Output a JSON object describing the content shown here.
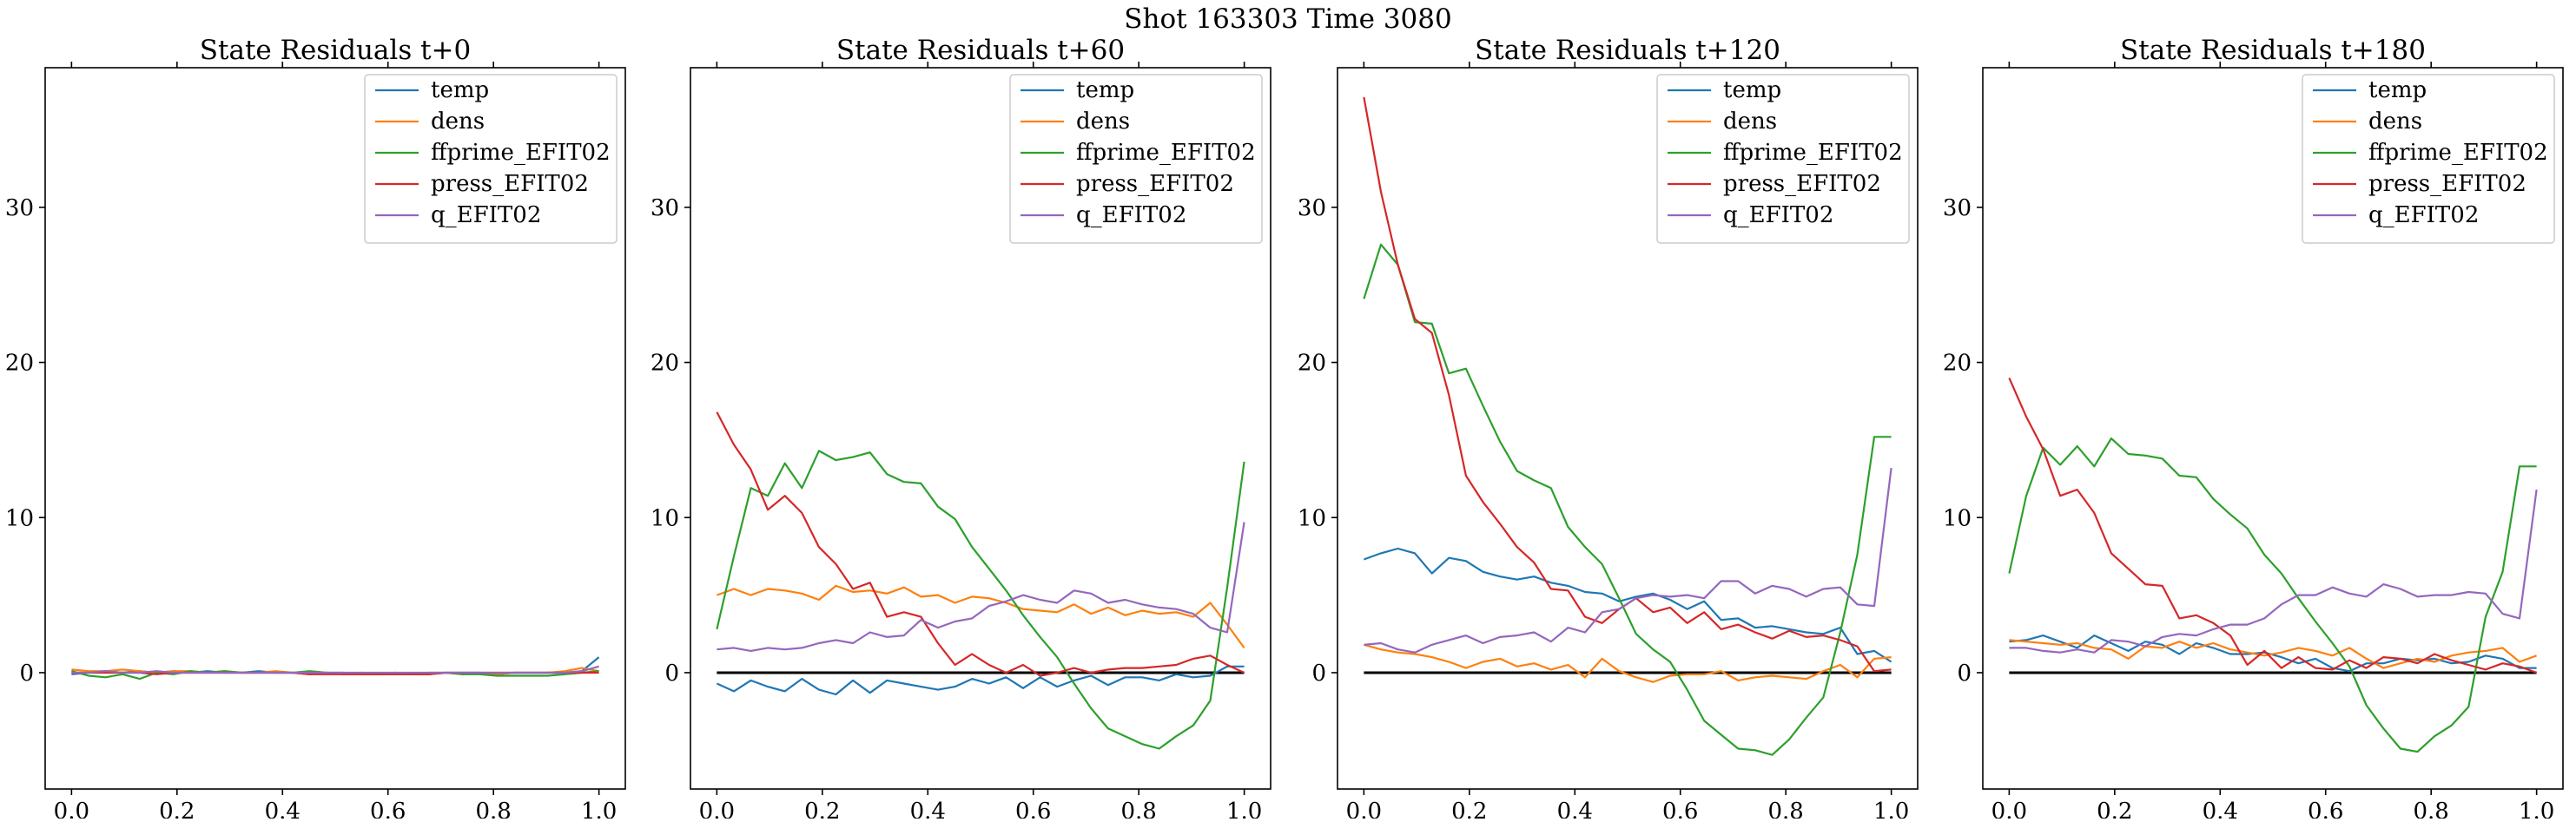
{
  "figure": {
    "suptitle": "Shot 163303   Time 3080"
  },
  "chart_data": [
    {
      "type": "line",
      "title": "State Residuals t+0",
      "xlim": [
        -0.05,
        1.05
      ],
      "ylim": [
        -7.5,
        39
      ],
      "xticks": [
        "0.0",
        "0.2",
        "0.4",
        "0.6",
        "0.8",
        "1.0"
      ],
      "yticks": [
        "0",
        "10",
        "20",
        "30"
      ],
      "show_zero_line": false,
      "legend": [
        "temp",
        "dens",
        "ffprime_EFIT02",
        "press_EFIT02",
        "q_EFIT02"
      ],
      "series": [
        {
          "name": "temp",
          "color": "#1f77b4",
          "values": [
            -0.1,
            0.0,
            0.1,
            0.0,
            0.1,
            0.0,
            0.1,
            0.0,
            0.1,
            0.0,
            0.0,
            0.1,
            0.0,
            0.0,
            -0.1,
            0.0,
            0.0,
            -0.1,
            -0.1,
            0.0,
            -0.1,
            -0.1,
            0.0,
            0.0,
            0.0,
            -0.1,
            0.0,
            0.0,
            0.0,
            0.0,
            0.1,
            1.0
          ]
        },
        {
          "name": "dens",
          "color": "#ff7f0e",
          "values": [
            0.2,
            0.1,
            0.1,
            0.2,
            0.1,
            0.0,
            0.1,
            0.1,
            0.0,
            0.1,
            0.0,
            0.0,
            0.1,
            0.0,
            -0.1,
            0.0,
            -0.1,
            -0.1,
            -0.1,
            0.0,
            -0.1,
            -0.1,
            0.0,
            -0.1,
            0.0,
            -0.1,
            0.0,
            0.0,
            0.0,
            0.1,
            0.3,
            0.1
          ]
        },
        {
          "name": "ffprime_EFIT02",
          "color": "#2ca02c",
          "values": [
            0.1,
            -0.2,
            -0.3,
            -0.1,
            -0.4,
            0.0,
            -0.1,
            0.1,
            0.0,
            0.1,
            0.0,
            0.0,
            0.0,
            0.0,
            0.1,
            0.0,
            -0.1,
            0.0,
            -0.1,
            -0.1,
            -0.1,
            0.0,
            0.0,
            -0.1,
            -0.1,
            -0.2,
            -0.2,
            -0.2,
            -0.2,
            -0.1,
            0.0,
            0.1
          ]
        },
        {
          "name": "press_EFIT02",
          "color": "#d62728",
          "values": [
            0.0,
            0.0,
            0.0,
            0.0,
            0.0,
            -0.1,
            0.0,
            0.0,
            0.0,
            0.0,
            0.0,
            0.0,
            0.0,
            0.0,
            -0.1,
            -0.1,
            -0.1,
            -0.1,
            -0.1,
            -0.1,
            -0.1,
            -0.1,
            0.0,
            0.0,
            0.0,
            0.0,
            0.0,
            0.0,
            0.0,
            0.0,
            0.0,
            0.0
          ]
        },
        {
          "name": "q_EFIT02",
          "color": "#9467bd",
          "values": [
            0.0,
            0.0,
            0.1,
            0.0,
            0.0,
            0.1,
            0.0,
            0.0,
            0.0,
            0.0,
            0.0,
            0.0,
            0.0,
            0.0,
            0.0,
            0.0,
            0.0,
            0.0,
            0.0,
            0.0,
            0.0,
            0.0,
            0.0,
            0.0,
            0.0,
            0.0,
            0.0,
            0.0,
            0.0,
            0.0,
            0.1,
            0.4
          ]
        }
      ]
    },
    {
      "type": "line",
      "title": "State Residuals t+60",
      "xlim": [
        -0.05,
        1.05
      ],
      "ylim": [
        -7.5,
        39
      ],
      "xticks": [
        "0.0",
        "0.2",
        "0.4",
        "0.6",
        "0.8",
        "1.0"
      ],
      "yticks": [
        "0",
        "10",
        "20",
        "30"
      ],
      "show_zero_line": true,
      "legend": [
        "temp",
        "dens",
        "ffprime_EFIT02",
        "press_EFIT02",
        "q_EFIT02"
      ],
      "series": [
        {
          "name": "temp",
          "color": "#1f77b4",
          "values": [
            -0.7,
            -1.2,
            -0.5,
            -0.9,
            -1.2,
            -0.4,
            -1.1,
            -1.4,
            -0.5,
            -1.3,
            -0.5,
            -0.7,
            -0.9,
            -1.1,
            -0.9,
            -0.4,
            -0.7,
            -0.3,
            -1.0,
            -0.3,
            -0.9,
            -0.5,
            -0.2,
            -0.8,
            -0.3,
            -0.3,
            -0.5,
            -0.1,
            -0.3,
            -0.2,
            0.4,
            0.4
          ]
        },
        {
          "name": "dens",
          "color": "#ff7f0e",
          "values": [
            5.0,
            5.4,
            5.0,
            5.4,
            5.3,
            5.1,
            4.7,
            5.6,
            5.2,
            5.3,
            5.1,
            5.5,
            4.9,
            5.0,
            4.5,
            4.9,
            4.8,
            4.5,
            4.1,
            4.0,
            3.9,
            4.4,
            3.8,
            4.2,
            3.7,
            4.0,
            3.8,
            3.9,
            3.6,
            4.5,
            3.1,
            1.6
          ]
        },
        {
          "name": "ffprime_EFIT02",
          "color": "#2ca02c",
          "values": [
            2.8,
            7.5,
            11.9,
            11.4,
            13.5,
            11.9,
            14.3,
            13.7,
            13.9,
            14.2,
            12.8,
            12.3,
            12.2,
            10.7,
            9.9,
            8.1,
            6.7,
            5.3,
            3.7,
            2.3,
            1.0,
            -0.7,
            -2.3,
            -3.6,
            -4.1,
            -4.6,
            -4.9,
            -4.1,
            -3.4,
            -1.8,
            5.5,
            13.6
          ]
        },
        {
          "name": "press_EFIT02",
          "color": "#d62728",
          "values": [
            16.8,
            14.7,
            13.1,
            10.5,
            11.4,
            10.3,
            8.1,
            7.0,
            5.4,
            5.8,
            3.6,
            3.9,
            3.6,
            1.9,
            0.5,
            1.2,
            0.5,
            0.0,
            0.5,
            -0.2,
            0.0,
            0.3,
            0.0,
            0.2,
            0.3,
            0.3,
            0.4,
            0.5,
            0.9,
            1.1,
            0.5,
            0.0
          ]
        },
        {
          "name": "q_EFIT02",
          "color": "#9467bd",
          "values": [
            1.5,
            1.6,
            1.4,
            1.6,
            1.5,
            1.6,
            1.9,
            2.1,
            1.9,
            2.6,
            2.3,
            2.4,
            3.4,
            2.9,
            3.3,
            3.5,
            4.3,
            4.6,
            5.0,
            4.7,
            4.5,
            5.3,
            5.1,
            4.5,
            4.7,
            4.4,
            4.2,
            4.1,
            3.8,
            2.9,
            2.6,
            9.7
          ]
        }
      ]
    },
    {
      "type": "line",
      "title": "State Residuals t+120",
      "xlim": [
        -0.05,
        1.05
      ],
      "ylim": [
        -7.5,
        39
      ],
      "xticks": [
        "0.0",
        "0.2",
        "0.4",
        "0.6",
        "0.8",
        "1.0"
      ],
      "yticks": [
        "0",
        "10",
        "20",
        "30"
      ],
      "show_zero_line": true,
      "legend": [
        "temp",
        "dens",
        "ffprime_EFIT02",
        "press_EFIT02",
        "q_EFIT02"
      ],
      "series": [
        {
          "name": "temp",
          "color": "#1f77b4",
          "values": [
            7.3,
            7.7,
            8.0,
            7.7,
            6.4,
            7.4,
            7.2,
            6.5,
            6.2,
            6.0,
            6.2,
            5.8,
            5.6,
            5.2,
            5.1,
            4.6,
            4.9,
            5.1,
            4.7,
            4.1,
            4.6,
            3.4,
            3.5,
            2.9,
            3.0,
            2.8,
            2.6,
            2.5,
            2.9,
            1.2,
            1.4,
            0.7
          ]
        },
        {
          "name": "dens",
          "color": "#ff7f0e",
          "values": [
            1.8,
            1.5,
            1.3,
            1.2,
            1.0,
            0.7,
            0.3,
            0.7,
            0.9,
            0.4,
            0.6,
            0.2,
            0.5,
            -0.3,
            0.9,
            0.1,
            -0.3,
            -0.6,
            -0.2,
            -0.1,
            -0.1,
            0.1,
            -0.5,
            -0.3,
            -0.2,
            -0.3,
            -0.4,
            0.1,
            0.5,
            -0.3,
            0.9,
            1.0
          ]
        },
        {
          "name": "ffprime_EFIT02",
          "color": "#2ca02c",
          "values": [
            24.1,
            27.6,
            26.3,
            22.6,
            22.5,
            19.3,
            19.6,
            17.2,
            14.9,
            13.0,
            12.4,
            11.9,
            9.4,
            8.1,
            7.0,
            4.8,
            2.5,
            1.5,
            0.7,
            -1.1,
            -3.1,
            -4.0,
            -4.9,
            -5.0,
            -5.3,
            -4.3,
            -2.9,
            -1.6,
            2.6,
            7.6,
            15.2,
            15.2
          ]
        },
        {
          "name": "press_EFIT02",
          "color": "#d62728",
          "values": [
            37.1,
            31.0,
            26.3,
            22.8,
            21.9,
            17.9,
            12.7,
            11.0,
            9.6,
            8.1,
            7.1,
            5.4,
            5.3,
            3.6,
            3.2,
            4.1,
            4.8,
            3.9,
            4.2,
            3.2,
            3.9,
            2.8,
            3.1,
            2.6,
            2.2,
            2.7,
            2.3,
            2.4,
            2.1,
            1.7,
            0.1,
            0.2
          ]
        },
        {
          "name": "q_EFIT02",
          "color": "#9467bd",
          "values": [
            1.8,
            1.9,
            1.5,
            1.3,
            1.8,
            2.1,
            2.4,
            1.9,
            2.3,
            2.4,
            2.6,
            2.0,
            2.9,
            2.6,
            3.9,
            4.1,
            4.8,
            5.0,
            4.9,
            5.0,
            4.8,
            5.9,
            5.9,
            5.1,
            5.6,
            5.4,
            4.9,
            5.4,
            5.5,
            4.4,
            4.3,
            13.2
          ]
        }
      ]
    },
    {
      "type": "line",
      "title": "State Residuals t+180",
      "xlim": [
        -0.05,
        1.05
      ],
      "ylim": [
        -7.5,
        39
      ],
      "xticks": [
        "0.0",
        "0.2",
        "0.4",
        "0.6",
        "0.8",
        "1.0"
      ],
      "yticks": [
        "0",
        "10",
        "20",
        "30"
      ],
      "show_zero_line": true,
      "legend": [
        "temp",
        "dens",
        "ffprime_EFIT02",
        "press_EFIT02",
        "q_EFIT02"
      ],
      "series": [
        {
          "name": "temp",
          "color": "#1f77b4",
          "values": [
            2.0,
            2.1,
            2.4,
            2.0,
            1.6,
            2.4,
            1.9,
            1.4,
            2.0,
            1.8,
            1.2,
            1.9,
            1.6,
            1.2,
            1.2,
            1.3,
            1.0,
            0.6,
            0.9,
            0.3,
            0.1,
            0.6,
            0.6,
            0.9,
            0.8,
            0.9,
            0.6,
            0.7,
            1.1,
            0.9,
            0.3,
            0.3
          ]
        },
        {
          "name": "dens",
          "color": "#ff7f0e",
          "values": [
            2.1,
            2.0,
            1.9,
            1.8,
            1.9,
            1.6,
            1.5,
            0.9,
            1.7,
            1.6,
            2.0,
            1.6,
            1.9,
            1.5,
            1.3,
            1.1,
            1.3,
            1.6,
            1.4,
            1.1,
            1.6,
            0.9,
            0.3,
            0.6,
            0.9,
            0.7,
            1.1,
            1.3,
            1.4,
            1.6,
            0.7,
            1.1
          ]
        },
        {
          "name": "ffprime_EFIT02",
          "color": "#2ca02c",
          "values": [
            6.4,
            11.4,
            14.5,
            13.4,
            14.6,
            13.3,
            15.1,
            14.1,
            14.0,
            13.8,
            12.7,
            12.6,
            11.2,
            10.2,
            9.3,
            7.6,
            6.4,
            4.8,
            3.3,
            1.9,
            0.4,
            -2.1,
            -3.6,
            -4.9,
            -5.1,
            -4.1,
            -3.4,
            -2.2,
            3.6,
            6.5,
            13.3,
            13.3
          ]
        },
        {
          "name": "press_EFIT02",
          "color": "#d62728",
          "values": [
            19.0,
            16.5,
            14.4,
            11.4,
            11.8,
            10.3,
            7.7,
            6.7,
            5.7,
            5.6,
            3.5,
            3.7,
            3.2,
            2.4,
            0.5,
            1.4,
            0.3,
            1.0,
            0.3,
            0.2,
            0.8,
            0.3,
            1.0,
            0.9,
            0.6,
            1.2,
            0.8,
            0.5,
            0.2,
            0.6,
            0.4,
            0.0
          ]
        },
        {
          "name": "q_EFIT02",
          "color": "#9467bd",
          "values": [
            1.6,
            1.6,
            1.4,
            1.3,
            1.5,
            1.3,
            2.1,
            2.0,
            1.7,
            2.3,
            2.5,
            2.4,
            2.8,
            3.1,
            3.1,
            3.5,
            4.4,
            5.0,
            5.0,
            5.5,
            5.1,
            4.9,
            5.7,
            5.4,
            4.9,
            5.0,
            5.0,
            5.2,
            5.1,
            3.8,
            3.5,
            11.8
          ]
        }
      ]
    }
  ]
}
